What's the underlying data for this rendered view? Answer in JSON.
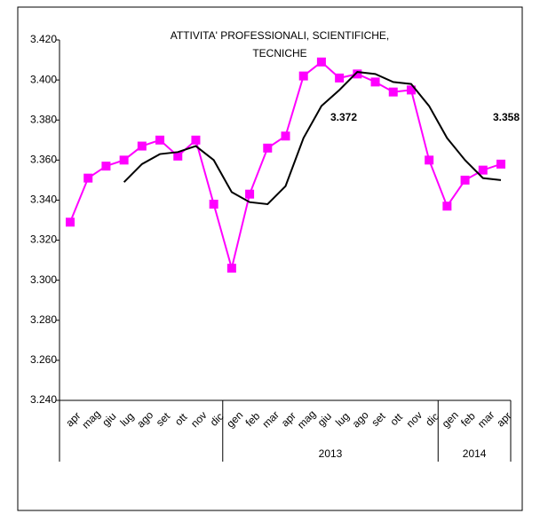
{
  "chart_data": {
    "type": "line",
    "title": [
      "ATTIVITA' PROFESSIONALI, SCIENTIFICHE,",
      "TECNICHE"
    ],
    "categories": [
      "apr",
      "mag",
      "giu",
      "lug",
      "ago",
      "set",
      "ott",
      "nov",
      "dic",
      "gen",
      "feb",
      "mar",
      "apr",
      "mag",
      "giu",
      "lug",
      "ago",
      "set",
      "ott",
      "nov",
      "dic",
      "gen",
      "feb",
      "mar",
      "apr"
    ],
    "years": [
      null,
      null,
      null,
      null,
      null,
      null,
      null,
      null,
      null,
      "2013",
      "2013",
      "2013",
      "2013",
      "2013",
      "2013",
      "2013",
      "2013",
      "2013",
      "2013",
      "2013",
      "2013",
      "2014",
      "2014",
      "2014",
      "2014"
    ],
    "series": [
      {
        "color": "#ff00ff",
        "marker": "square",
        "values": [
          3329,
          3351,
          3357,
          3360,
          3367,
          3370,
          3362,
          3370,
          3338,
          3306,
          3343,
          3366,
          3372,
          3402,
          3409,
          3401,
          3403,
          3399,
          3394,
          3395,
          3360,
          3337,
          3350,
          3355,
          3358
        ]
      },
      {
        "color": "#000000",
        "values": [
          null,
          null,
          null,
          3349,
          3358,
          3363,
          3364,
          3367,
          3360,
          3344,
          3339,
          3338,
          3347,
          3371,
          3387,
          3395,
          3404,
          3403,
          3399,
          3398,
          3387,
          3371,
          3360,
          3351,
          3350
        ]
      }
    ],
    "annotations": [
      "3.372",
      "3.358"
    ],
    "ylim": [
      3240,
      3420
    ],
    "yticks": [
      {
        "value": 3240,
        "label": "3.240"
      },
      {
        "value": 3260,
        "label": "3.260"
      },
      {
        "value": 3280,
        "label": "3.280"
      },
      {
        "value": 3300,
        "label": "3.300"
      },
      {
        "value": 3320,
        "label": "3.320"
      },
      {
        "value": 3340,
        "label": "3.340"
      },
      {
        "value": 3360,
        "label": "3.360"
      },
      {
        "value": 3380,
        "label": "3.380"
      },
      {
        "value": 3400,
        "label": "3.400"
      },
      {
        "value": 3420,
        "label": "3.420"
      }
    ]
  }
}
